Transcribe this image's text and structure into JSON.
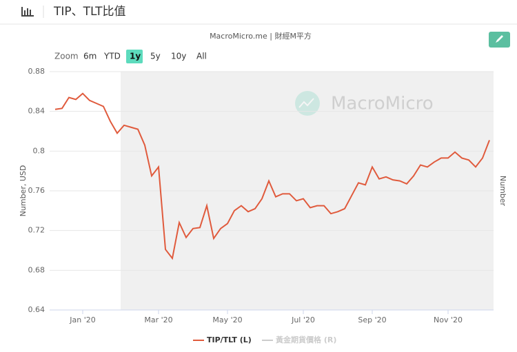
{
  "header": {
    "title": "TIP、TLT比值"
  },
  "chart_data": {
    "type": "line",
    "subtitle": "MacroMicro.me | 財經M平方",
    "watermark": "MacroMicro",
    "zoom": {
      "label": "Zoom",
      "buttons": [
        "6m",
        "YTD",
        "1y",
        "5y",
        "10y",
        "All"
      ],
      "selected": 2
    },
    "y_label": "Number, USD",
    "y2_label": "Number",
    "categories": [
      null,
      null,
      null,
      null,
      "Jan '20",
      null,
      null,
      null,
      null,
      null,
      null,
      null,
      null,
      null,
      null,
      "Mar '20",
      null,
      null,
      null,
      null,
      null,
      null,
      null,
      null,
      null,
      "May '20",
      null,
      null,
      null,
      null,
      null,
      null,
      null,
      null,
      null,
      null,
      "Jul '20",
      null,
      null,
      null,
      null,
      null,
      null,
      null,
      null,
      null,
      "Sep '20",
      null,
      null,
      null,
      null,
      null,
      null,
      null,
      null,
      null,
      null,
      "Nov '20",
      null,
      null,
      null,
      null,
      null,
      null
    ],
    "series": [
      {
        "name": "TIP/TLT (L)",
        "color": "#e05a3c",
        "values": [
          0.842,
          0.843,
          0.854,
          0.852,
          0.858,
          0.851,
          0.848,
          0.845,
          0.83,
          0.818,
          0.826,
          0.824,
          0.822,
          0.806,
          0.775,
          0.784,
          0.701,
          0.692,
          0.728,
          0.713,
          0.722,
          0.723,
          0.745,
          0.712,
          0.722,
          0.727,
          0.74,
          0.745,
          0.739,
          0.742,
          0.752,
          0.77,
          0.754,
          0.757,
          0.757,
          0.75,
          0.752,
          0.743,
          0.745,
          0.745,
          0.737,
          0.739,
          0.742,
          0.755,
          0.768,
          0.766,
          0.784,
          0.772,
          0.774,
          0.771,
          0.77,
          0.767,
          0.775,
          0.786,
          0.784,
          0.789,
          0.793,
          0.793,
          0.799,
          0.793,
          0.791,
          0.784,
          0.793,
          0.811
        ]
      }
    ],
    "inactive_series": [
      {
        "name": "黃金期貨價格 (R)",
        "color": "#cccccc"
      }
    ],
    "ylim": [
      0.64,
      0.88
    ],
    "yticks": [
      0.64,
      0.68,
      0.72,
      0.76,
      0.8,
      0.84,
      0.88
    ],
    "grid": true
  }
}
